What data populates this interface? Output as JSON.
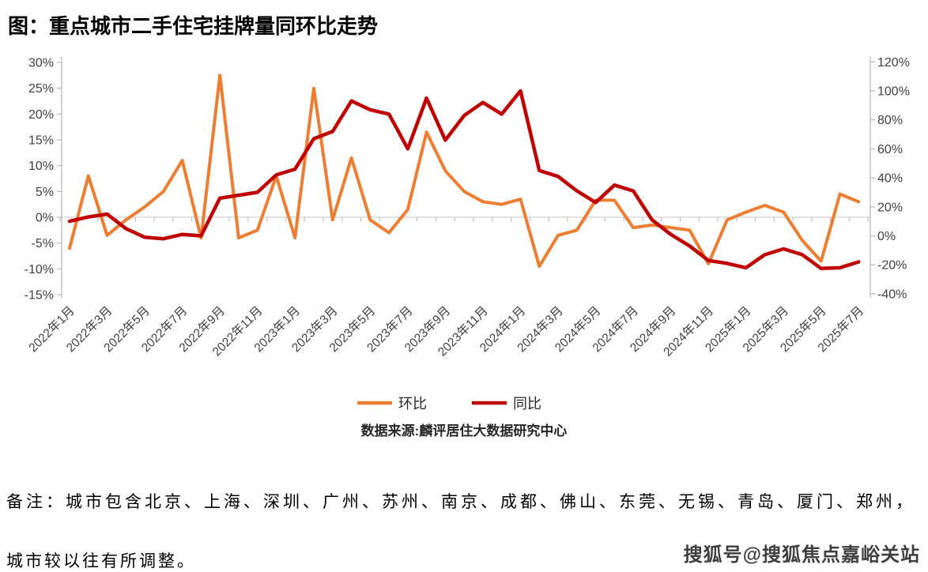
{
  "title": "图：重点城市二手住宅挂牌量同环比走势",
  "legend": [
    {
      "label": "环比",
      "color": "#ED7D31"
    },
    {
      "label": "同比",
      "color": "#C00000"
    }
  ],
  "source": "数据来源:麟评居住大数据研究中心",
  "notes": [
    "备注：城市包含北京、上海、深圳、广州、苏州、南京、成都、佛山、东莞、无锡、青岛、厦门、郑州，",
    "城市较以往有所调整。"
  ],
  "watermark": "搜狐号@搜狐焦点嘉峪关站",
  "colors": {
    "mom_line": "#ED7D31",
    "yoy_line": "#C00000",
    "zero_gridline": "#D9D9D9",
    "axis": "#BFBFBF",
    "tick_text": "#404040"
  },
  "chart_data": {
    "type": "line",
    "title": "重点城市二手住宅挂牌量同环比走势",
    "x": [
      "2022年1月",
      "2022年2月",
      "2022年3月",
      "2022年4月",
      "2022年5月",
      "2022年6月",
      "2022年7月",
      "2022年8月",
      "2022年9月",
      "2022年10月",
      "2022年11月",
      "2022年12月",
      "2023年1月",
      "2023年2月",
      "2023年3月",
      "2023年4月",
      "2023年5月",
      "2023年6月",
      "2023年7月",
      "2023年8月",
      "2023年9月",
      "2023年10月",
      "2023年11月",
      "2023年12月",
      "2024年1月",
      "2024年2月",
      "2024年3月",
      "2024年4月",
      "2024年5月",
      "2024年6月",
      "2024年7月",
      "2024年8月",
      "2024年9月",
      "2024年10月",
      "2024年11月",
      "2024年12月",
      "2025年1月",
      "2025年2月",
      "2025年3月",
      "2025年4月",
      "2025年5月",
      "2025年6月",
      "2025年7月"
    ],
    "x_labels_shown": [
      "2022年1月",
      "2022年3月",
      "2022年5月",
      "2022年7月",
      "2022年9月",
      "2022年11月",
      "2023年1月",
      "2023年3月",
      "2023年5月",
      "2023年7月",
      "2023年9月",
      "2023年11月",
      "2024年1月",
      "2024年3月",
      "2024年5月",
      "2024年7月",
      "2024年9月",
      "2024年11月",
      "2025年1月",
      "2025年3月",
      "2025年5月",
      "2025年7月"
    ],
    "x_label_every": 2,
    "series": [
      {
        "name": "环比",
        "axis": "left",
        "color": "#ED7D31",
        "values": [
          -6,
          8,
          -3.5,
          -0.5,
          2,
          5,
          11,
          -4,
          27.5,
          -4,
          -2.5,
          8,
          -4,
          25,
          -0.5,
          11.5,
          -0.5,
          -3,
          1.5,
          16.5,
          9,
          5,
          3,
          2.5,
          3.5,
          -9.5,
          -3.5,
          -2.5,
          3.3,
          3.3,
          -2,
          -1.5,
          -2,
          -2.5,
          -9,
          -0.5,
          1,
          2.3,
          1,
          -4.5,
          -8.5,
          4.5,
          3
        ]
      },
      {
        "name": "同比",
        "axis": "right",
        "color": "#C00000",
        "values": [
          10,
          13,
          15,
          5,
          -1,
          -2,
          1,
          0,
          26,
          28,
          30,
          42,
          46,
          67,
          72,
          93,
          87,
          84,
          60,
          95,
          66,
          83,
          92,
          84,
          100,
          45,
          41,
          31,
          23,
          35,
          31,
          11,
          1,
          -7,
          -17,
          -19,
          -22,
          -13,
          -9,
          -13,
          -22.5,
          -22,
          -18
        ]
      }
    ],
    "axes": {
      "left": {
        "min": -15,
        "max": 30,
        "step": 5,
        "unit": "%",
        "tick_labels": [
          "30%",
          "25%",
          "20%",
          "15%",
          "10%",
          "5%",
          "0%",
          "-5%",
          "-10%",
          "-15%"
        ]
      },
      "right": {
        "min": -40,
        "max": 120,
        "step": 20,
        "unit": "%",
        "tick_labels": [
          "120%",
          "100%",
          "80%",
          "60%",
          "40%",
          "20%",
          "0%",
          "-20%",
          "-40%"
        ]
      }
    },
    "gridlines": "horizontal zero line only",
    "legend_position": "bottom-center"
  }
}
